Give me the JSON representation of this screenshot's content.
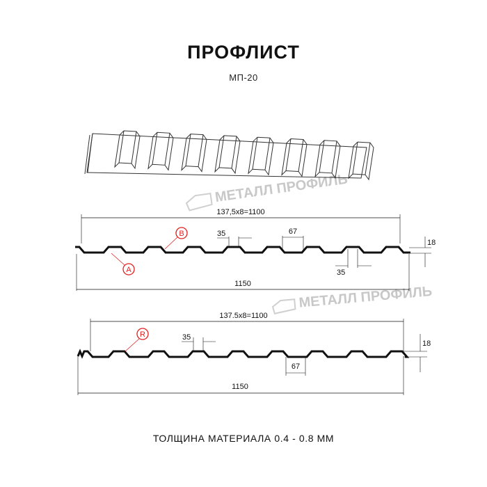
{
  "title": "ПРОФЛИСТ",
  "subtitle": "МП-20",
  "footer": "ТОЛЩИНА МАТЕРИАЛА 0.4 - 0.8 ММ",
  "watermark": "МЕТАЛЛ ПРОФИЛЬ",
  "profile_a": {
    "pitch_label": "137,5x8=1100",
    "width_label": "1150",
    "crest_label": "35",
    "valley_label": "35",
    "base_label": "67",
    "height_label": "18",
    "marker_a": "A",
    "marker_b": "B"
  },
  "profile_r": {
    "pitch_label": "137.5x8=1100",
    "width_label": "1150",
    "crest_label": "35",
    "base_label": "67",
    "height_label": "18",
    "marker_r": "R"
  },
  "colors": {
    "line": "#111111",
    "marker": "#e02020",
    "watermark": "#c8c8c8"
  }
}
